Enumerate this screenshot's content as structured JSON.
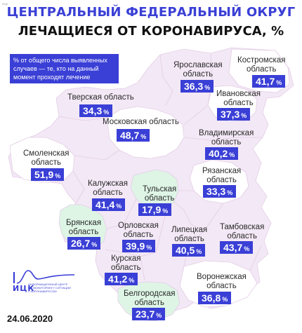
{
  "title": "ЦЕНТРАЛЬНЫЙ ФЕДЕРАЛЬНЫЙ ОКРУГ",
  "subtitle": "ЛЕЧАЩИЕСЯ ОТ КОРОНАВИРУСА, %",
  "note": "% от общего числа выявленных случаев — те, кто на данный момент проходят лечение",
  "percent_sign": "%",
  "corner_mark": "ИЦК",
  "regions": [
    {
      "id": "yaroslavl",
      "name_lines": [
        "Ярославская",
        "область"
      ],
      "value": "36,3",
      "color": "#ffffff"
    },
    {
      "id": "kostroma",
      "name_lines": [
        "Костромская",
        "область"
      ],
      "value": "41,7",
      "color": "#ffffff"
    },
    {
      "id": "tver",
      "name_lines": [
        "Тверская область"
      ],
      "value": "34,3",
      "color": "#ffffff"
    },
    {
      "id": "ivanovo",
      "name_lines": [
        "Ивановская",
        "область"
      ],
      "value": "37,3",
      "color": "#ffffff"
    },
    {
      "id": "moscow",
      "name_lines": [
        "Московская область"
      ],
      "value": "48,7",
      "color": "#ffffff"
    },
    {
      "id": "vladimir",
      "name_lines": [
        "Владимирская",
        "область"
      ],
      "value": "40,2",
      "color": "#ffffff"
    },
    {
      "id": "smolensk",
      "name_lines": [
        "Смоленская",
        "область"
      ],
      "value": "51,9",
      "color": "#ffffff"
    },
    {
      "id": "ryazan",
      "name_lines": [
        "Рязанская",
        "область"
      ],
      "value": "33,3",
      "color": "#ffffff"
    },
    {
      "id": "kaluga",
      "name_lines": [
        "Калужская",
        "область"
      ],
      "value": "41,4",
      "color": "#ffffff"
    },
    {
      "id": "tula",
      "name_lines": [
        "Тульская",
        "область"
      ],
      "value": "17,9",
      "color": "#def5e6"
    },
    {
      "id": "bryansk",
      "name_lines": [
        "Брянская",
        "область"
      ],
      "value": "26,7",
      "color": "#def5e6"
    },
    {
      "id": "orel",
      "name_lines": [
        "Орловская",
        "область"
      ],
      "value": "39,9",
      "color": "#ffffff"
    },
    {
      "id": "lipetsk",
      "name_lines": [
        "Липецкая",
        "область"
      ],
      "value": "40,5",
      "color": "#ffffff"
    },
    {
      "id": "tambov",
      "name_lines": [
        "Тамбовская",
        "область"
      ],
      "value": "43,7",
      "color": "#ffffff"
    },
    {
      "id": "kursk",
      "name_lines": [
        "Курская",
        "область"
      ],
      "value": "41,2",
      "color": "#ffffff"
    },
    {
      "id": "voronezh",
      "name_lines": [
        "Воронежская",
        "область"
      ],
      "value": "36,8",
      "color": "#ffffff"
    },
    {
      "id": "belgorod",
      "name_lines": [
        "Белгородская",
        "область"
      ],
      "value": "23,7",
      "color": "#def5e6"
    }
  ],
  "legend_colors": {
    "accent": "#3a3fd6",
    "low": "#def5e6",
    "normal": "#ffffff",
    "background": "#f3e8f5"
  },
  "logo": {
    "name": "ИЦК",
    "subtitle": "ИНФОРМАЦИОННЫЙ ЦЕНТР ПО МОНИТОРИНГУ СИТУАЦИИ С КОРОНАВИРУСОМ"
  },
  "date": "24.06.2020"
}
